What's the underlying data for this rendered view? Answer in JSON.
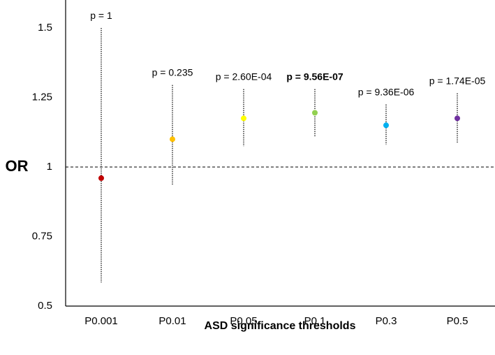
{
  "chart_data": {
    "type": "scatter",
    "xlabel": "ASD significance thresholds",
    "ylabel": "OR",
    "ylim": [
      0.5,
      1.6
    ],
    "yticks": [
      {
        "value": 0.5,
        "label": "0.5"
      },
      {
        "value": 0.75,
        "label": "0.75"
      },
      {
        "value": 1,
        "label": "1"
      },
      {
        "value": 1.25,
        "label": "1.25"
      },
      {
        "value": 1.5,
        "label": "1.5"
      }
    ],
    "reference_line": {
      "y": 1,
      "style": "dashed"
    },
    "categories": [
      "P0.001",
      "P0.01",
      "P0.05",
      "P0.1",
      "P0.3",
      "P0.5"
    ],
    "points": [
      {
        "category": "P0.001",
        "or": 0.96,
        "lower": 0.585,
        "upper": 1.5,
        "p_label": "p = 1",
        "color": "#c00000",
        "label_color": "#000000",
        "label_bold": false
      },
      {
        "category": "P0.01",
        "or": 1.1,
        "lower": 0.935,
        "upper": 1.295,
        "p_label": "p = 0.235",
        "color": "#ffc000",
        "label_color": "#000000",
        "label_bold": false
      },
      {
        "category": "P0.05",
        "or": 1.175,
        "lower": 1.075,
        "upper": 1.28,
        "p_label": "p = 2.60E-04",
        "color": "#ffff00",
        "label_color": "#000000",
        "label_bold": false
      },
      {
        "category": "P0.1",
        "or": 1.195,
        "lower": 1.11,
        "upper": 1.28,
        "p_label": "p = 9.56E-07",
        "color": "#92d050",
        "label_color": "#e02020",
        "label_bold": true
      },
      {
        "category": "P0.3",
        "or": 1.15,
        "lower": 1.08,
        "upper": 1.225,
        "p_label": "p = 9.36E-06",
        "color": "#00b0f0",
        "label_color": "#000000",
        "label_bold": false
      },
      {
        "category": "P0.5",
        "or": 1.175,
        "lower": 1.085,
        "upper": 1.265,
        "p_label": "p = 1.74E-05",
        "color": "#7030a0",
        "label_color": "#000000",
        "label_bold": false
      }
    ],
    "grid": false,
    "legend": "none"
  }
}
